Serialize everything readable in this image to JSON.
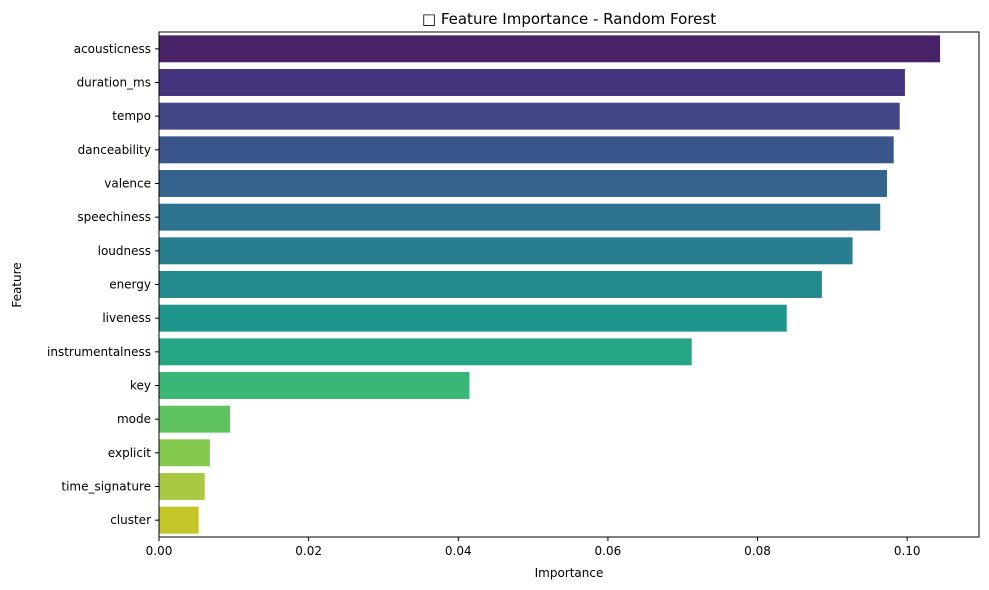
{
  "chart_data": {
    "type": "bar",
    "orientation": "horizontal",
    "title": "□ Feature Importance - Random Forest",
    "xlabel": "Importance",
    "ylabel": "Feature",
    "xlim": [
      0,
      0.1096
    ],
    "xticks": [
      0,
      0.02,
      0.04,
      0.06,
      0.08,
      0.1
    ],
    "xtick_labels": [
      "0.00",
      "0.02",
      "0.04",
      "0.06",
      "0.08",
      "0.10"
    ],
    "grid": false,
    "categories": [
      "acousticness",
      "duration_ms",
      "tempo",
      "danceability",
      "valence",
      "speechiness",
      "loudness",
      "energy",
      "liveness",
      "instrumentalness",
      "key",
      "mode",
      "explicit",
      "time_signature",
      "cluster"
    ],
    "values": [
      0.1044,
      0.0997,
      0.099,
      0.0982,
      0.0973,
      0.0964,
      0.0927,
      0.0886,
      0.0839,
      0.0712,
      0.0415,
      0.0095,
      0.0068,
      0.0061,
      0.0053
    ],
    "colors": [
      "#482267",
      "#46337e",
      "#424686",
      "#3b568b",
      "#34648d",
      "#2d728e",
      "#287e8e",
      "#228a8d",
      "#1f968b",
      "#25a584",
      "#3ab676",
      "#5ec35f",
      "#85ca4f",
      "#a9c944",
      "#c3c626"
    ]
  }
}
